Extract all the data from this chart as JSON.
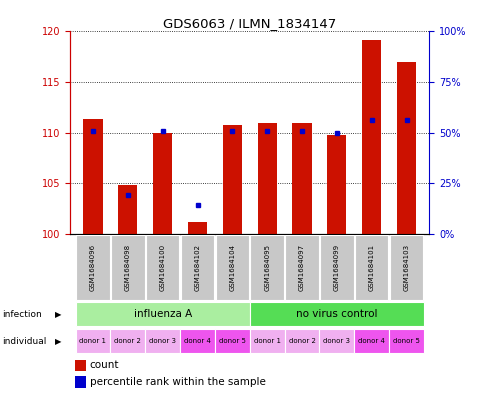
{
  "title": "GDS6063 / ILMN_1834147",
  "samples": [
    "GSM1684096",
    "GSM1684098",
    "GSM1684100",
    "GSM1684102",
    "GSM1684104",
    "GSM1684095",
    "GSM1684097",
    "GSM1684099",
    "GSM1684101",
    "GSM1684103"
  ],
  "counts": [
    111.3,
    104.8,
    110.0,
    101.2,
    110.8,
    111.0,
    111.0,
    109.8,
    119.2,
    117.0
  ],
  "percentiles": [
    51,
    19,
    51,
    14,
    51,
    51,
    51,
    50,
    56,
    56
  ],
  "ylim_left": [
    100,
    120
  ],
  "ylim_right": [
    0,
    100
  ],
  "yticks_left": [
    100,
    105,
    110,
    115,
    120
  ],
  "yticks_right": [
    0,
    25,
    50,
    75,
    100
  ],
  "ytick_labels_right": [
    "0%",
    "25%",
    "50%",
    "75%",
    "100%"
  ],
  "infection_groups": [
    {
      "label": "influenza A",
      "start": 0,
      "end": 5,
      "color": "#AAEEA0"
    },
    {
      "label": "no virus control",
      "start": 5,
      "end": 10,
      "color": "#55DD55"
    }
  ],
  "individual_labels": [
    "donor 1",
    "donor 2",
    "donor 3",
    "donor 4",
    "donor 5",
    "donor 1",
    "donor 2",
    "donor 3",
    "donor 4",
    "donor 5"
  ],
  "individual_colors": [
    "#F0B0F0",
    "#F0B0F0",
    "#F0B0F0",
    "#EE55EE",
    "#EE55EE",
    "#F0B0F0",
    "#F0B0F0",
    "#F0B0F0",
    "#EE55EE",
    "#EE55EE"
  ],
  "bar_color": "#CC1100",
  "dot_color": "#0000CC",
  "bar_width": 0.55,
  "bg_color": "#FFFFFF",
  "plot_bg": "#FFFFFF",
  "grid_color": "#000000",
  "tick_color_left": "#CC0000",
  "tick_color_right": "#0000CC",
  "sample_bg_color": "#C8C8C8"
}
